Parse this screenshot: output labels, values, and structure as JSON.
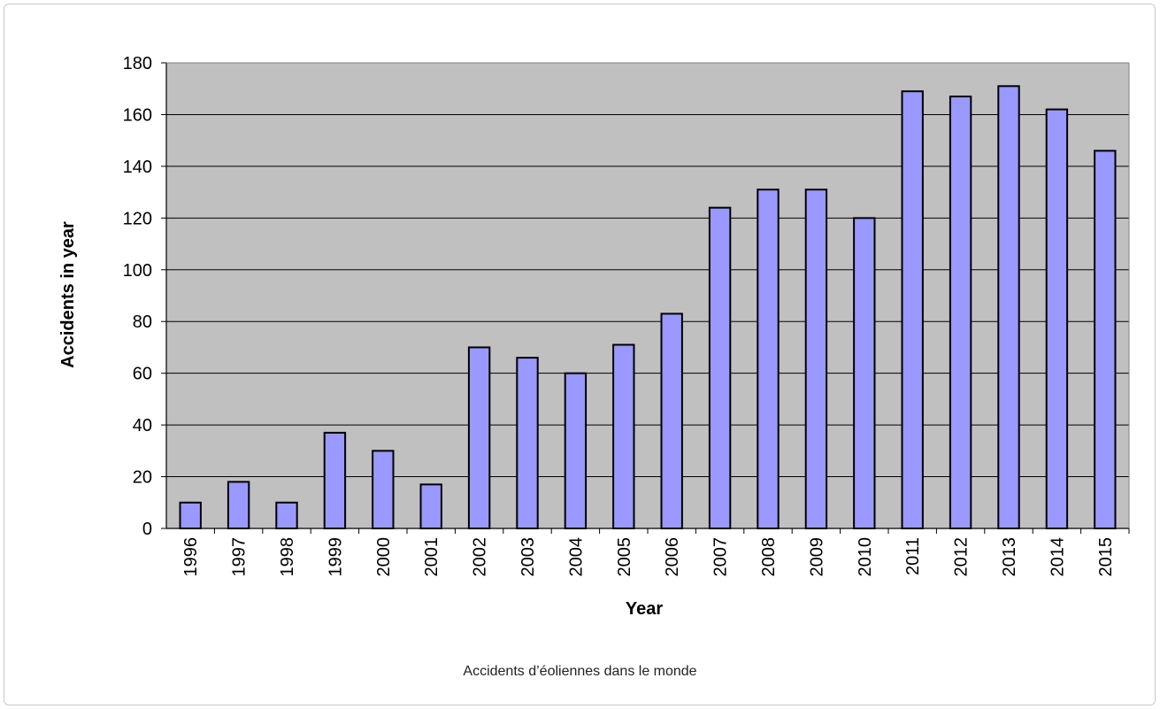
{
  "chart_data": {
    "type": "bar",
    "categories": [
      "1996",
      "1997",
      "1998",
      "1999",
      "2000",
      "2001",
      "2002",
      "2003",
      "2004",
      "2005",
      "2006",
      "2007",
      "2008",
      "2009",
      "2010",
      "2011",
      "2012",
      "2013",
      "2014",
      "2015"
    ],
    "values": [
      10,
      18,
      10,
      37,
      30,
      17,
      70,
      66,
      60,
      71,
      83,
      124,
      131,
      131,
      120,
      169,
      167,
      171,
      162,
      146
    ],
    "xlabel": "Year",
    "ylabel": "Accidents in year",
    "ylim": [
      0,
      180
    ],
    "yticks": [
      0,
      20,
      40,
      60,
      80,
      100,
      120,
      140,
      160,
      180
    ],
    "grid": true,
    "legend": "none",
    "colors": {
      "bar": "#9999ff",
      "bar_stroke": "#000000",
      "plot_background": "#c0c0c0",
      "grid": "#000000"
    }
  },
  "caption": "Accidents d’éoliennes dans le monde"
}
